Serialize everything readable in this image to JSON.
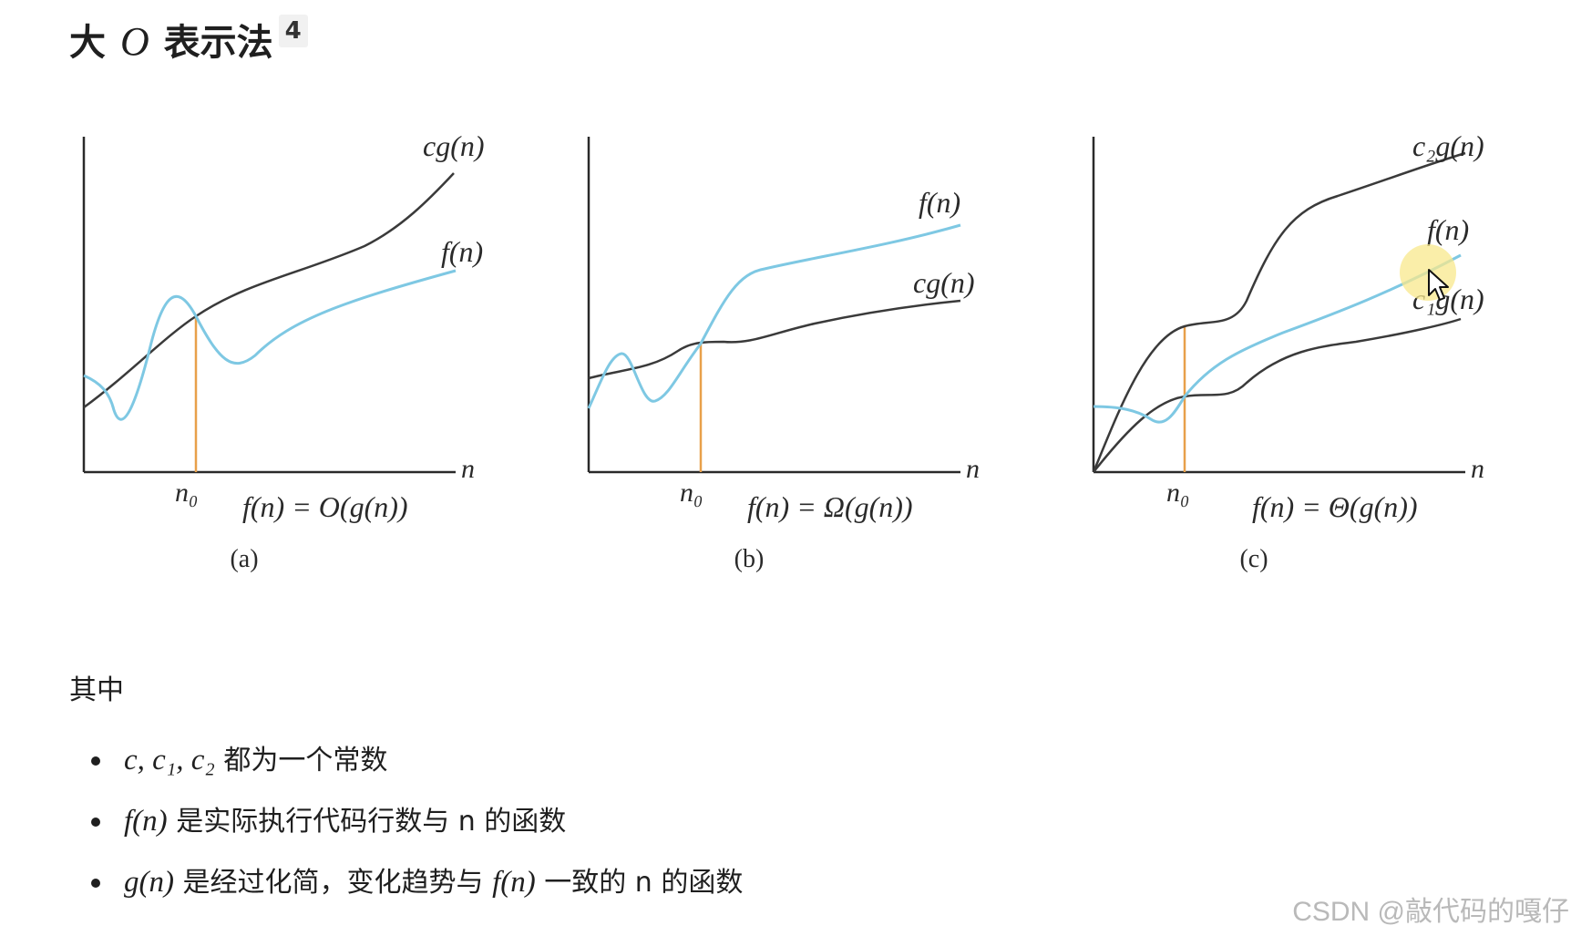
{
  "page": {
    "heading_pre": "大",
    "heading_math": "O",
    "heading_post": "表示法",
    "footnote": "4"
  },
  "figures": [
    {
      "id": "a",
      "labels": [
        {
          "name": "cg(n)"
        },
        {
          "name": "f(n)"
        }
      ],
      "n_label": "n",
      "n0_label": "n₀",
      "formula": "f(n) = O(g(n))",
      "caption": "(a)"
    },
    {
      "id": "b",
      "labels": [
        {
          "name": "f(n)"
        },
        {
          "name": "cg(n)"
        }
      ],
      "n_label": "n",
      "n0_label": "n₀",
      "formula": "f(n) = Ω(g(n))",
      "caption": "(b)"
    },
    {
      "id": "c",
      "labels": [
        {
          "name": "c₂g(n)"
        },
        {
          "name": "f(n)"
        },
        {
          "name": "c₁g(n)"
        }
      ],
      "n_label": "n",
      "n0_label": "n₀",
      "formula": "f(n) = Θ(g(n))",
      "caption": "(c)"
    }
  ],
  "content": {
    "intro": "其中",
    "bullets": [
      {
        "math": "c, c₁, c₂",
        "text": " 都为一个常数"
      },
      {
        "math": "f(n)",
        "text": " 是实际执行代码行数与 n 的函数"
      },
      {
        "math": "g(n)",
        "text": " 是经过化简，变化趋势与 ",
        "math2": "f(n)",
        "text2": " 一致的 n 的函数"
      }
    ]
  },
  "watermark": "CSDN @敲代码的嘎仔",
  "colors": {
    "f_curve": "#7ec8e3",
    "g_curve": "#3a3a3a",
    "n0_line": "#e8a04a",
    "axis": "#2a2a2a"
  }
}
